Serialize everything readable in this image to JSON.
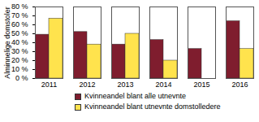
{
  "chart_data": {
    "type": "bar",
    "categories": [
      "2011",
      "2012",
      "2013",
      "2014",
      "2015",
      "2016"
    ],
    "series": [
      {
        "name": "Kvinneandel blant alle utnevnte",
        "color": "#7f1d2e",
        "values": [
          49,
          52,
          38,
          43,
          33,
          64
        ]
      },
      {
        "name": "Kvinneandel blant utnevnte domstolledere",
        "color": "#ffe34d",
        "values": [
          67,
          38,
          50,
          20,
          0,
          33
        ]
      }
    ],
    "y_label": "Alminnelige domstoler",
    "ylim": [
      0,
      80
    ],
    "yticks": [
      {
        "value": 0,
        "label": "0 %"
      },
      {
        "value": 10,
        "label": "10 %"
      },
      {
        "value": 20,
        "label": "20 %"
      },
      {
        "value": 30,
        "label": "30 %"
      },
      {
        "value": 40,
        "label": "40 %"
      },
      {
        "value": 50,
        "label": "50 %"
      },
      {
        "value": 60,
        "label": "60 %"
      },
      {
        "value": 70,
        "label": "70 %"
      },
      {
        "value": 80,
        "label": "80 %"
      }
    ],
    "grid": false,
    "legend": "bottom"
  }
}
